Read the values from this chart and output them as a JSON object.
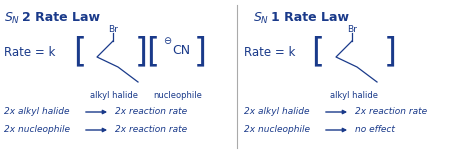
{
  "bg_color": "#ffffff",
  "text_color": "#1a3a8a",
  "arrow_color": "#1a3a8a",
  "fig_width": 4.74,
  "fig_height": 1.53,
  "dpi": 100,
  "sn2_title": "S",
  "sn2_sub": "N",
  "sn2_num": "2 Rate Law",
  "sn1_title": "S",
  "sn1_sub": "N",
  "sn1_num": "1 Rate Law"
}
